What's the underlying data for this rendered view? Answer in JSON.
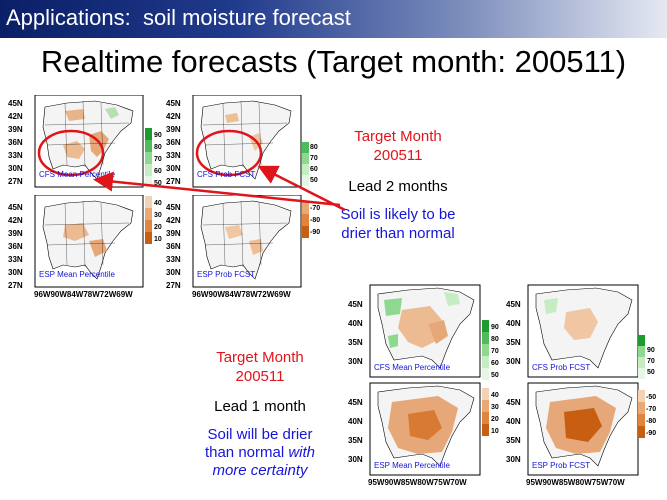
{
  "header": {
    "title": "Applications:  soil moisture forecast"
  },
  "main": {
    "title": "Realtime forecasts (Target month: 200511)"
  },
  "upper": {
    "target_line1": "Target Month",
    "target_line2": "200511",
    "lead": "Lead 2 months",
    "soil_line1": "Soil is likely to be",
    "soil_line2": "drier than normal",
    "map_labels": [
      "CFS Mean Percentile",
      "CFS Prob FCST",
      "ESP Mean Percentile",
      "ESP Prob FCST"
    ],
    "lat_ticks": [
      "45N",
      "42N",
      "39N",
      "36N",
      "33N",
      "30N",
      "27N"
    ],
    "lon_ticks": "96W90W84W78W72W69W",
    "green_scale": [
      "90",
      "80",
      "70",
      "60",
      "50"
    ],
    "orange_scale": [
      "40",
      "30",
      "20",
      "10"
    ],
    "orange_scale_prob": [
      "-70",
      "-80",
      "-90"
    ]
  },
  "lower": {
    "target_line1": "Target Month",
    "target_line2": "200511",
    "lead": "Lead 1 month",
    "soil_line1": "Soil will be drier",
    "soil_line2_plain": "than normal ",
    "soil_line2_italic": "with",
    "soil_line3": "more certainty",
    "map_labels": [
      "CFS Mean Percentile",
      "CFS Prob FCST",
      "ESP Mean Percentile",
      "ESP Prob FCST"
    ],
    "lat_ticks": [
      "45N",
      "40N",
      "35N",
      "30N"
    ],
    "lon_ticks": "95W90W85W80W75W70W",
    "green_scale": [
      "90",
      "80",
      "70",
      "60",
      "50"
    ],
    "orange_scale": [
      "40",
      "30",
      "20",
      "10"
    ],
    "orange_scale_prob": [
      "-50",
      "-70",
      "-80",
      "-90"
    ]
  },
  "colors": {
    "header_dark": "#0a1f66",
    "title_red": "#e0151b",
    "text_blue": "#1515d8",
    "circle_red": "#e0151b"
  }
}
